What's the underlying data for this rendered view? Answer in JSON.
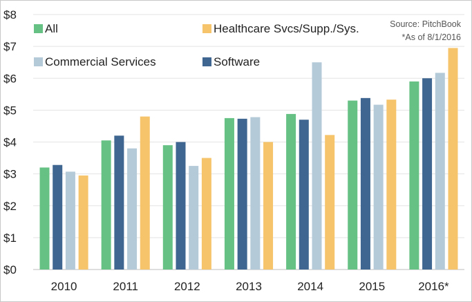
{
  "chart_data": {
    "type": "bar",
    "categories": [
      "2010",
      "2011",
      "2012",
      "2013",
      "2014",
      "2015",
      "2016*"
    ],
    "series": [
      {
        "name": "All",
        "color": "#66c284",
        "values": [
          3.2,
          4.05,
          3.9,
          4.75,
          4.88,
          5.3,
          5.9
        ]
      },
      {
        "name": "Software",
        "color": "#3f6690",
        "values": [
          3.28,
          4.2,
          4.0,
          4.73,
          4.7,
          5.38,
          6.0
        ]
      },
      {
        "name": "Commercial Services",
        "color": "#b4cad8",
        "values": [
          3.07,
          3.8,
          3.25,
          4.78,
          6.5,
          5.17,
          6.17
        ]
      },
      {
        "name": "Healthcare Svcs/Supp./Sys.",
        "color": "#f6c46b",
        "values": [
          2.95,
          4.8,
          3.5,
          4.0,
          4.22,
          5.33,
          6.95
        ]
      }
    ],
    "ylim": [
      0,
      8
    ],
    "yticks": [
      "$0",
      "$1",
      "$2",
      "$3",
      "$4",
      "$5",
      "$6",
      "$7",
      "$8"
    ],
    "grid": true,
    "legend": [
      {
        "name": "All",
        "color": "#66c284"
      },
      {
        "name": "Healthcare Svcs/Supp./Sys.",
        "color": "#f6c46b"
      },
      {
        "name": "Commercial Services",
        "color": "#b4cad8"
      },
      {
        "name": "Software",
        "color": "#3f6690"
      }
    ],
    "legend_position": "top",
    "source": "Source: PitchBook",
    "note": "*As of 8/1/2016"
  }
}
